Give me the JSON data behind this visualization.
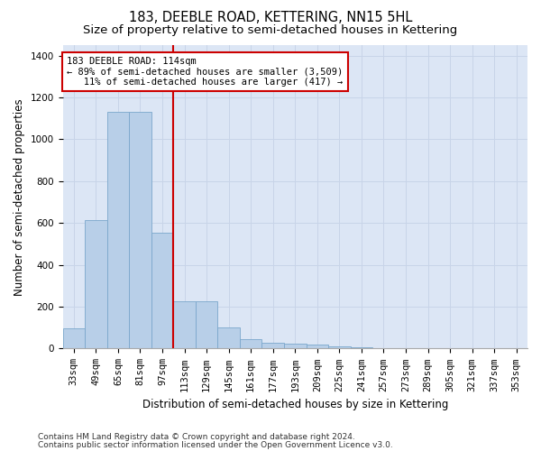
{
  "title": "183, DEEBLE ROAD, KETTERING, NN15 5HL",
  "subtitle": "Size of property relative to semi-detached houses in Kettering",
  "xlabel": "Distribution of semi-detached houses by size in Kettering",
  "ylabel": "Number of semi-detached properties",
  "categories": [
    "33sqm",
    "49sqm",
    "65sqm",
    "81sqm",
    "97sqm",
    "113sqm",
    "129sqm",
    "145sqm",
    "161sqm",
    "177sqm",
    "193sqm",
    "209sqm",
    "225sqm",
    "241sqm",
    "257sqm",
    "273sqm",
    "289sqm",
    "305sqm",
    "321sqm",
    "337sqm",
    "353sqm"
  ],
  "values": [
    95,
    615,
    1130,
    1130,
    555,
    225,
    225,
    100,
    45,
    28,
    25,
    18,
    12,
    8,
    4,
    4,
    2,
    1,
    0,
    0,
    0
  ],
  "bar_color": "#b8cfe8",
  "bar_edge_color": "#7ba7cc",
  "highlight_line_color": "#cc0000",
  "annotation_line1": "183 DEEBLE ROAD: 114sqm",
  "annotation_line2": "← 89% of semi-detached houses are smaller (3,509)",
  "annotation_line3": "   11% of semi-detached houses are larger (417) →",
  "annotation_box_color": "#cc0000",
  "ylim": [
    0,
    1450
  ],
  "yticks": [
    0,
    200,
    400,
    600,
    800,
    1000,
    1200,
    1400
  ],
  "background_color": "#ffffff",
  "grid_color": "#c8d4e8",
  "axes_bg_color": "#dce6f5",
  "title_fontsize": 10.5,
  "subtitle_fontsize": 9.5,
  "axis_label_fontsize": 8.5,
  "tick_fontsize": 7.5,
  "footer_fontsize": 6.5,
  "footer_line1": "Contains HM Land Registry data © Crown copyright and database right 2024.",
  "footer_line2": "Contains public sector information licensed under the Open Government Licence v3.0."
}
